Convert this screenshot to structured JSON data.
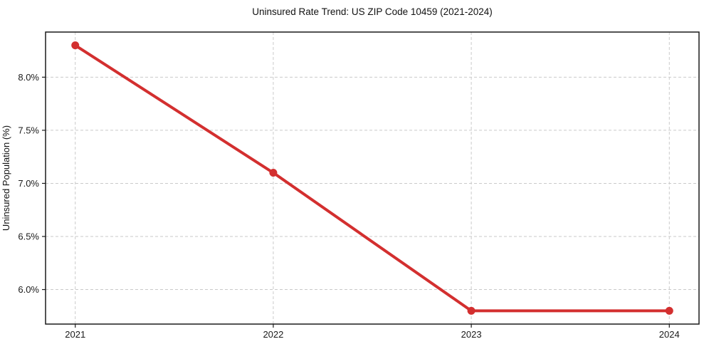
{
  "figure": {
    "background": "#ffffff"
  },
  "chart_data": {
    "type": "line",
    "title": "Uninsured Rate Trend: US ZIP Code 10459 (2021-2024)",
    "xlabel": "",
    "ylabel": "Uninsured Population (%)",
    "x": [
      2021,
      2022,
      2023,
      2024
    ],
    "values": [
      8.3,
      7.1,
      5.8,
      5.8
    ],
    "x_tick_labels": [
      "2021",
      "2022",
      "2023",
      "2024"
    ],
    "y_ticks": [
      6.0,
      6.5,
      7.0,
      7.5,
      8.0
    ],
    "y_tick_labels": [
      "6.0%",
      "6.5%",
      "7.0%",
      "7.5%",
      "8.0%"
    ],
    "xlim": [
      2020.85,
      2024.15
    ],
    "ylim": [
      5.675,
      8.425
    ],
    "grid": true,
    "grid_style": "dashed",
    "legend": false,
    "line_color": "#d32f2f",
    "marker_color": "#d32f2f",
    "grid_color": "#cacaca",
    "axis_color": "#1a1a1a",
    "tick_label_color": "#1a1a1a"
  }
}
